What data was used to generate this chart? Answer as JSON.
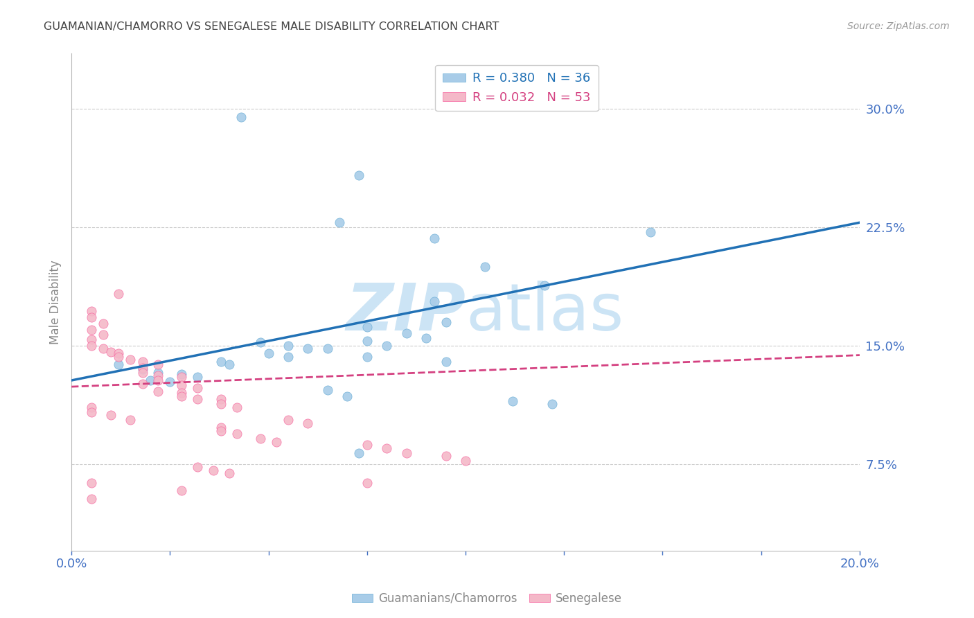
{
  "title": "GUAMANIAN/CHAMORRO VS SENEGALESE MALE DISABILITY CORRELATION CHART",
  "source": "Source: ZipAtlas.com",
  "ylabel": "Male Disability",
  "ytick_labels": [
    "7.5%",
    "15.0%",
    "22.5%",
    "30.0%"
  ],
  "ytick_values": [
    0.075,
    0.15,
    0.225,
    0.3
  ],
  "xmin": 0.0,
  "xmax": 0.2,
  "ymin": 0.02,
  "ymax": 0.335,
  "legend_r_blue": "R = 0.380",
  "legend_n_blue": "N = 36",
  "legend_r_pink": "R = 0.032",
  "legend_n_pink": "N = 53",
  "legend_label_blue": "Guamanians/Chamorros",
  "legend_label_pink": "Senegalese",
  "blue_color": "#a8cce8",
  "pink_color": "#f4b8c8",
  "blue_edge_color": "#6baed6",
  "pink_edge_color": "#f768a1",
  "blue_line_color": "#2171b5",
  "pink_line_color": "#d44080",
  "watermark_color": "#cce4f5",
  "title_color": "#444444",
  "axis_color": "#4472C4",
  "blue_scatter": [
    [
      0.043,
      0.295
    ],
    [
      0.073,
      0.258
    ],
    [
      0.068,
      0.228
    ],
    [
      0.092,
      0.218
    ],
    [
      0.105,
      0.2
    ],
    [
      0.12,
      0.188
    ],
    [
      0.092,
      0.178
    ],
    [
      0.095,
      0.165
    ],
    [
      0.075,
      0.162
    ],
    [
      0.085,
      0.158
    ],
    [
      0.09,
      0.155
    ],
    [
      0.075,
      0.153
    ],
    [
      0.08,
      0.15
    ],
    [
      0.048,
      0.152
    ],
    [
      0.055,
      0.15
    ],
    [
      0.06,
      0.148
    ],
    [
      0.065,
      0.148
    ],
    [
      0.05,
      0.145
    ],
    [
      0.055,
      0.143
    ],
    [
      0.075,
      0.143
    ],
    [
      0.095,
      0.14
    ],
    [
      0.038,
      0.14
    ],
    [
      0.04,
      0.138
    ],
    [
      0.012,
      0.138
    ],
    [
      0.018,
      0.135
    ],
    [
      0.022,
      0.133
    ],
    [
      0.028,
      0.132
    ],
    [
      0.032,
      0.13
    ],
    [
      0.02,
      0.128
    ],
    [
      0.025,
      0.127
    ],
    [
      0.065,
      0.122
    ],
    [
      0.07,
      0.118
    ],
    [
      0.112,
      0.115
    ],
    [
      0.122,
      0.113
    ],
    [
      0.073,
      0.082
    ],
    [
      0.147,
      0.222
    ]
  ],
  "pink_scatter": [
    [
      0.012,
      0.183
    ],
    [
      0.005,
      0.172
    ],
    [
      0.005,
      0.168
    ],
    [
      0.008,
      0.164
    ],
    [
      0.005,
      0.16
    ],
    [
      0.008,
      0.157
    ],
    [
      0.005,
      0.154
    ],
    [
      0.005,
      0.15
    ],
    [
      0.008,
      0.148
    ],
    [
      0.01,
      0.146
    ],
    [
      0.012,
      0.145
    ],
    [
      0.012,
      0.143
    ],
    [
      0.015,
      0.141
    ],
    [
      0.018,
      0.14
    ],
    [
      0.022,
      0.138
    ],
    [
      0.018,
      0.136
    ],
    [
      0.018,
      0.133
    ],
    [
      0.022,
      0.131
    ],
    [
      0.028,
      0.13
    ],
    [
      0.022,
      0.128
    ],
    [
      0.018,
      0.126
    ],
    [
      0.028,
      0.125
    ],
    [
      0.032,
      0.123
    ],
    [
      0.022,
      0.121
    ],
    [
      0.028,
      0.12
    ],
    [
      0.028,
      0.118
    ],
    [
      0.032,
      0.116
    ],
    [
      0.038,
      0.116
    ],
    [
      0.038,
      0.113
    ],
    [
      0.042,
      0.111
    ],
    [
      0.005,
      0.111
    ],
    [
      0.005,
      0.108
    ],
    [
      0.01,
      0.106
    ],
    [
      0.015,
      0.103
    ],
    [
      0.055,
      0.103
    ],
    [
      0.06,
      0.101
    ],
    [
      0.038,
      0.098
    ],
    [
      0.038,
      0.096
    ],
    [
      0.042,
      0.094
    ],
    [
      0.048,
      0.091
    ],
    [
      0.052,
      0.089
    ],
    [
      0.075,
      0.087
    ],
    [
      0.08,
      0.085
    ],
    [
      0.085,
      0.082
    ],
    [
      0.095,
      0.08
    ],
    [
      0.1,
      0.077
    ],
    [
      0.032,
      0.073
    ],
    [
      0.036,
      0.071
    ],
    [
      0.04,
      0.069
    ],
    [
      0.005,
      0.063
    ],
    [
      0.075,
      0.063
    ],
    [
      0.028,
      0.058
    ],
    [
      0.005,
      0.053
    ]
  ],
  "blue_trendline": [
    [
      0.0,
      0.128
    ],
    [
      0.2,
      0.228
    ]
  ],
  "pink_trendline": [
    [
      0.0,
      0.124
    ],
    [
      0.2,
      0.144
    ]
  ]
}
